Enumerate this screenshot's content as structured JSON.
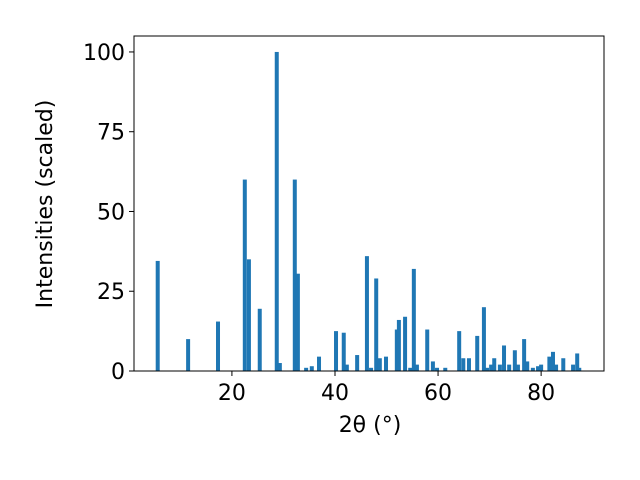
{
  "chart_data": {
    "type": "bar",
    "xlabel": "2θ (°)",
    "ylabel": "Intensities (scaled)",
    "color": "#1f77b4",
    "x": [
      5.6,
      11.5,
      17.3,
      22.5,
      23.3,
      25.4,
      28.7,
      29.3,
      32.2,
      32.8,
      34.4,
      35.5,
      36.9,
      40.2,
      41.7,
      42.3,
      44.3,
      46.2,
      47,
      48,
      48.7,
      49.9,
      52,
      52.4,
      53.6,
      54.6,
      55.3,
      55.9,
      57.9,
      59,
      59.8,
      61.4,
      64.1,
      64.9,
      66,
      67.6,
      68.9,
      69.5,
      70.3,
      70.9,
      72,
      72.8,
      73.8,
      74.9,
      75.5,
      76.7,
      77.3,
      78.4,
      79.4,
      80,
      81.6,
      82.3,
      82.9,
      84.3,
      86.2,
      87,
      87.4
    ],
    "values": [
      34.5,
      10,
      15.5,
      60,
      35,
      19.5,
      100,
      2.5,
      60,
      30.5,
      1,
      1.5,
      4.5,
      12.5,
      12,
      2,
      5,
      36,
      1,
      29,
      4,
      4.5,
      13,
      16,
      17,
      1,
      32,
      2,
      13,
      3,
      1,
      1,
      12.5,
      4,
      4,
      11,
      20,
      1,
      2,
      4,
      2,
      8,
      2,
      6.5,
      2,
      10,
      3,
      1,
      1.5,
      2,
      4.5,
      6,
      2,
      4,
      2,
      5.5,
      1
    ],
    "xlim": [
      1,
      92.2
    ],
    "ylim": [
      0,
      105
    ],
    "xticks": [
      20,
      40,
      60,
      80
    ],
    "yticks": [
      0,
      25,
      50,
      75,
      100
    ]
  }
}
